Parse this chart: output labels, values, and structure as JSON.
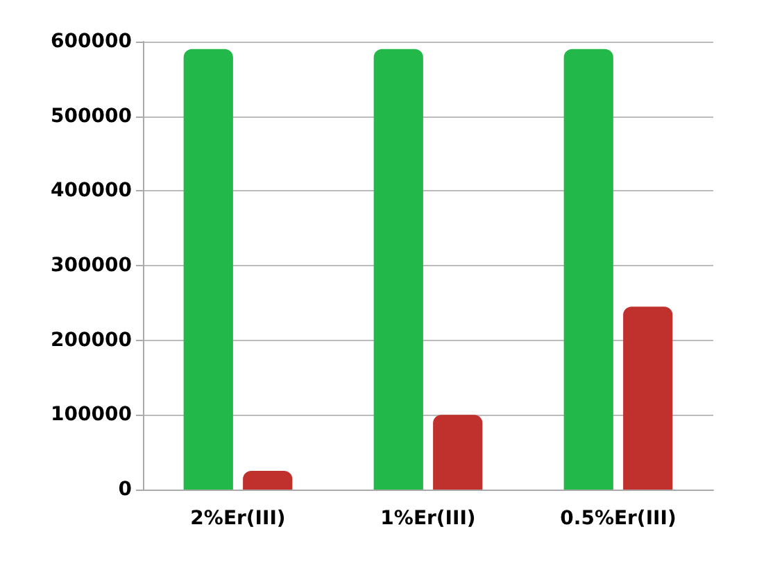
{
  "chart_data": {
    "type": "bar",
    "categories": [
      "2%Er(III)",
      "1%Er(III)",
      "0.5%Er(III)"
    ],
    "series": [
      {
        "color": "#22b84a",
        "values": [
          590000,
          590000,
          590000
        ]
      },
      {
        "color": "#c0302c",
        "values": [
          25000,
          100000,
          245000
        ]
      }
    ],
    "ylim": [
      0,
      600000
    ],
    "yticks": [
      0,
      100000,
      200000,
      300000,
      400000,
      500000,
      600000
    ],
    "grid": "y"
  }
}
